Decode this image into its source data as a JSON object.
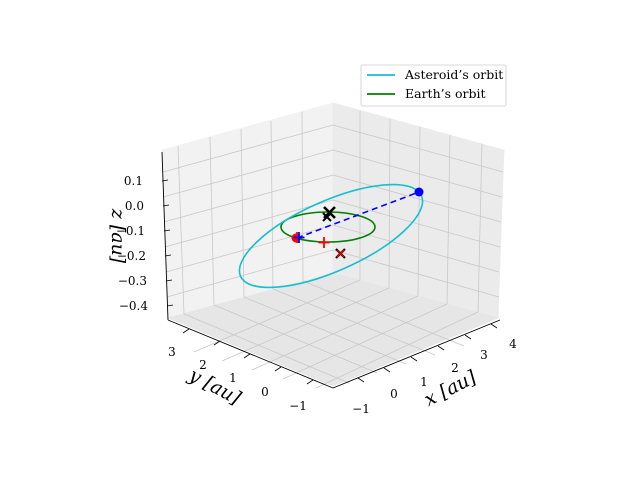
{
  "chart_data": {
    "type": "line",
    "projection": "3d",
    "axes": {
      "x": {
        "label": "x [au]",
        "ticks": [
          "−1",
          "0",
          "1",
          "2",
          "3",
          "4"
        ],
        "range": [
          -1.5,
          4.2
        ]
      },
      "y": {
        "label": "y [au]",
        "ticks": [
          "−1",
          "0",
          "1",
          "2",
          "3"
        ],
        "range": [
          -1.5,
          3.6
        ]
      },
      "z": {
        "label": "z [au]",
        "ticks": [
          "−0.4",
          "−0.3",
          "−0.2",
          "−0.1",
          "0.0",
          "0.1"
        ],
        "range": [
          -0.45,
          0.15
        ]
      }
    },
    "grid": true,
    "legend": {
      "placement": "top-right",
      "entries": [
        {
          "name": "Asteroid’s orbit",
          "color": "#17becf"
        },
        {
          "name": "Earth’s orbit",
          "color": "#008000"
        }
      ]
    },
    "series": [
      {
        "name": "Asteroid’s orbit",
        "color": "#17becf",
        "shape": "ellipse",
        "center": [
          1.2,
          1.3,
          -0.1
        ],
        "semi_axes": [
          {
            "direction": [
              2.3,
              1.9,
              0.12
            ]
          },
          {
            "direction": [
              0.5,
              -0.5,
              -0.1
            ]
          }
        ]
      },
      {
        "name": "Earth’s orbit",
        "color": "#008000",
        "shape": "circle",
        "center": [
          0,
          0,
          0
        ],
        "radius": 1.0
      }
    ],
    "markers": [
      {
        "symbol": "x",
        "color": "#000000",
        "x": 0,
        "y": 0.35,
        "z": 0.0
      },
      {
        "symbol": "x",
        "color": "#000000",
        "x": 0.05,
        "y": 0.3,
        "z": -0.01
      },
      {
        "symbol": "x",
        "color": "#000000",
        "x": 0.55,
        "y": -0.7,
        "z": -0.08
      },
      {
        "symbol": "x",
        "color": "#ff0000",
        "x": 0.55,
        "y": -0.7,
        "z": -0.08
      },
      {
        "symbol": "+",
        "color": "#ff0000",
        "x": -0.3,
        "y": 0.6,
        "z": 0.0
      },
      {
        "symbol": "+",
        "color": "#ff0000",
        "x": 0.5,
        "y": 1.15,
        "z": 0.0
      },
      {
        "symbol": "o",
        "color": "#ff0000",
        "x": -0.3,
        "y": 0.68,
        "z": 0.0
      },
      {
        "symbol": "+",
        "color": "#0000ff",
        "x": -0.3,
        "y": 0.68,
        "z": 0.0
      },
      {
        "symbol": "o",
        "color": "#0000ff",
        "x": 3.5,
        "y": 3.15,
        "z": 0.02
      }
    ],
    "connector": {
      "style": "dashed",
      "color": "#0000ff",
      "from": [
        -0.3,
        0.68,
        0.0
      ],
      "to": [
        3.5,
        3.15,
        0.02
      ]
    }
  }
}
